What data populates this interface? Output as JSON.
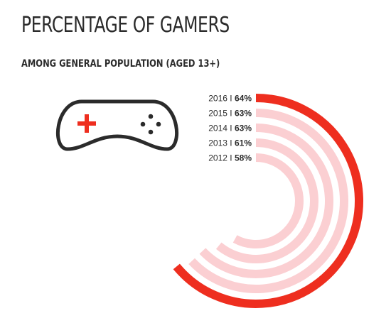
{
  "chart_data": {
    "type": "radial-bar",
    "title": "PERCENTAGE OF GAMERS",
    "subtitle": "AMONG GENERAL POPULATION (AGED 13+)",
    "unit": "%",
    "categories": [
      "2016",
      "2015",
      "2014",
      "2013",
      "2012"
    ],
    "values": [
      64,
      63,
      63,
      61,
      58
    ],
    "value_labels": [
      "64%",
      "63%",
      "63%",
      "61%",
      "58%"
    ],
    "separator": "I",
    "colors": {
      "highlight": "#ee2e1f",
      "default": "#fbcfd2",
      "text": "#2b2b2b"
    },
    "icon": "gamepad-icon"
  }
}
